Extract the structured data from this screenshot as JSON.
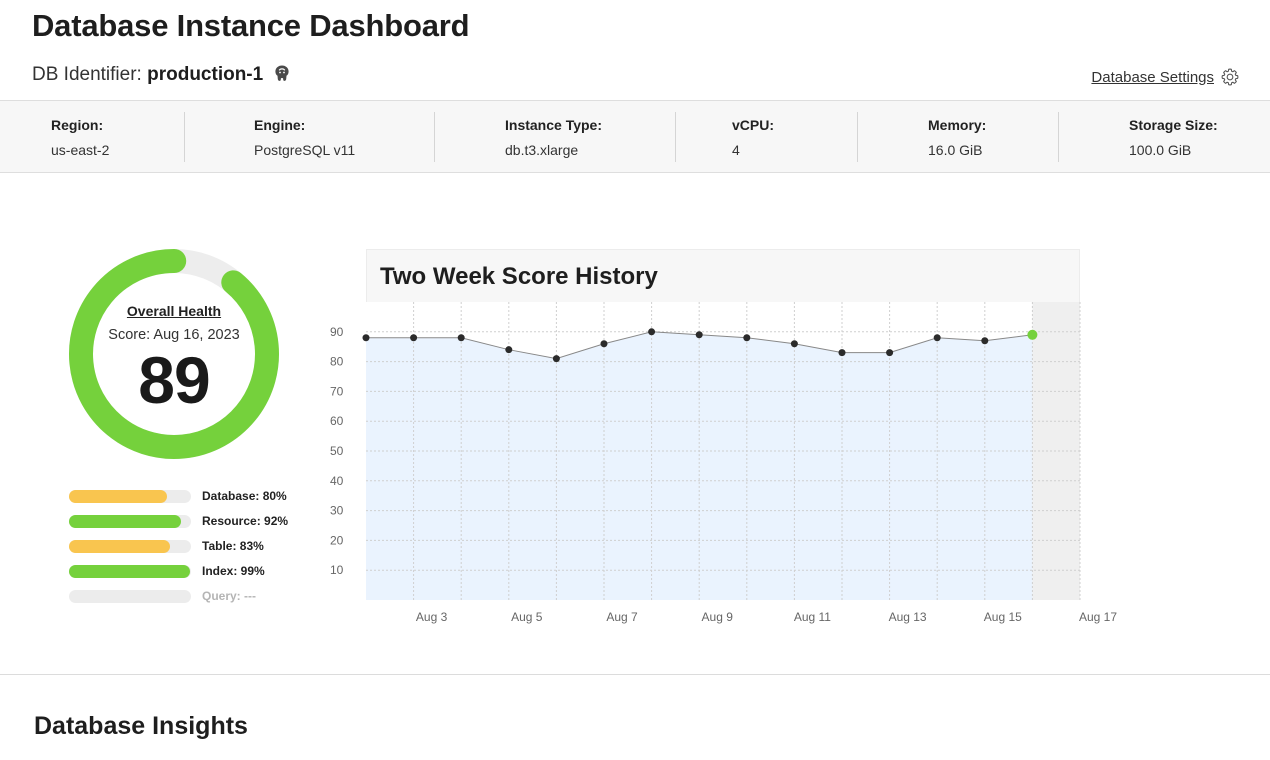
{
  "header": {
    "title": "Database Instance Dashboard",
    "identifier_label": "DB Identifier:",
    "identifier_value": "production-1",
    "settings_label": "Database Settings"
  },
  "info": [
    {
      "label": "Region:",
      "value": "us-east-2"
    },
    {
      "label": "Engine:",
      "value": "PostgreSQL v11"
    },
    {
      "label": "Instance Type:",
      "value": "db.t3.xlarge"
    },
    {
      "label": "vCPU:",
      "value": "4"
    },
    {
      "label": "Memory:",
      "value": "16.0 GiB"
    },
    {
      "label": "Storage Size:",
      "value": "100.0 GiB"
    }
  ],
  "health": {
    "label": "Overall Health",
    "date": "Score: Aug 16, 2023",
    "score": "89",
    "percent": 89,
    "ring_color": "#75d13c",
    "track_color": "#ededed"
  },
  "metrics": [
    {
      "label": "Database: 80%",
      "percent": 80,
      "color": "#f9c54f"
    },
    {
      "label": "Resource: 92%",
      "percent": 92,
      "color": "#75d13c"
    },
    {
      "label": "Table: 83%",
      "percent": 83,
      "color": "#f9c54f"
    },
    {
      "label": "Index: 99%",
      "percent": 99,
      "color": "#75d13c"
    },
    {
      "label": "Query: ---",
      "percent": 0,
      "color": "#ededed"
    }
  ],
  "chart_title": "Two Week Score History",
  "chart_data": {
    "type": "area",
    "title": "Two Week Score History",
    "x": [
      "Aug 2",
      "Aug 3",
      "Aug 4",
      "Aug 5",
      "Aug 6",
      "Aug 7",
      "Aug 8",
      "Aug 9",
      "Aug 10",
      "Aug 11",
      "Aug 12",
      "Aug 13",
      "Aug 14",
      "Aug 15",
      "Aug 16"
    ],
    "values": [
      88,
      88,
      88,
      84,
      81,
      86,
      90,
      89,
      88,
      86,
      83,
      83,
      88,
      87,
      89
    ],
    "x_ticks": [
      "Aug 3",
      "Aug 5",
      "Aug 7",
      "Aug 9",
      "Aug 11",
      "Aug 13",
      "Aug 15",
      "Aug 17"
    ],
    "y_ticks": [
      10,
      20,
      30,
      40,
      50,
      60,
      70,
      80,
      90
    ],
    "ylim": [
      0,
      100
    ],
    "xlim": [
      "Aug 2",
      "Aug 17"
    ],
    "grid": true,
    "xlabel": "",
    "ylabel": "",
    "line_color": "#888888",
    "fill_color": "#eaf3fe",
    "point_color": "#2b2b2b",
    "latest_point_color": "#75d13c"
  },
  "insights_title": "Database Insights"
}
